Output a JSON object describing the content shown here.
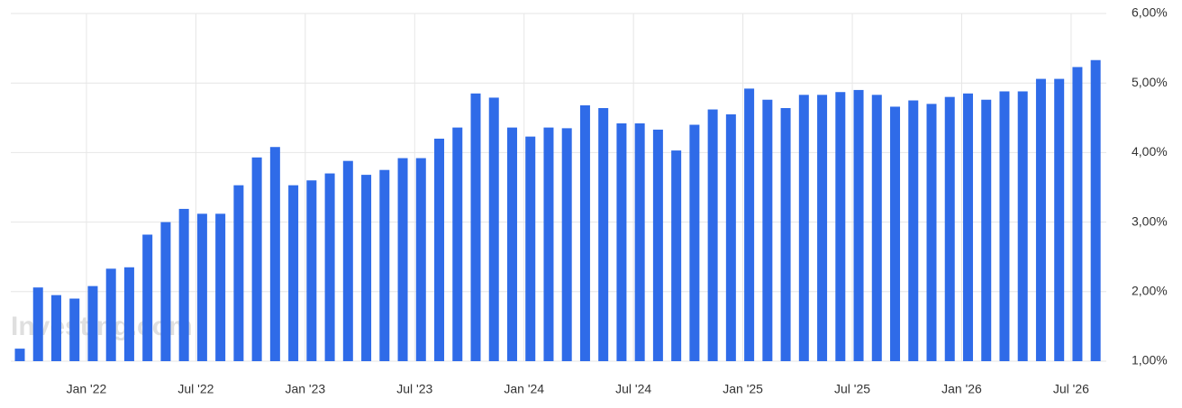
{
  "chart_data": {
    "type": "bar",
    "watermark": "Investing.com",
    "color": "#2f6be8",
    "categories": [
      null,
      null,
      null,
      null,
      "Jan '22",
      null,
      null,
      null,
      null,
      null,
      "Jul '22",
      null,
      null,
      null,
      null,
      null,
      "Jan '23",
      null,
      null,
      null,
      null,
      null,
      "Jul '23",
      null,
      null,
      null,
      null,
      null,
      "Jan '24",
      null,
      null,
      null,
      null,
      null,
      "Jul '24",
      null,
      null,
      null,
      null,
      null,
      "Jan '25",
      null,
      null,
      null,
      null,
      null,
      "Jul '25",
      null,
      null,
      null,
      null,
      null,
      "Jan '26",
      null,
      null,
      null,
      null,
      null,
      "Jul '26",
      null
    ],
    "values": [
      1.18,
      2.06,
      1.95,
      1.9,
      2.08,
      2.33,
      2.35,
      2.82,
      3.0,
      3.19,
      3.12,
      3.12,
      3.53,
      3.93,
      4.08,
      3.53,
      3.6,
      3.7,
      3.88,
      3.68,
      3.75,
      3.92,
      3.92,
      4.2,
      4.36,
      4.85,
      4.79,
      4.36,
      4.23,
      4.36,
      4.35,
      4.68,
      4.64,
      4.42,
      4.42,
      4.33,
      4.03,
      4.4,
      4.62,
      4.55,
      4.92,
      4.76,
      4.64,
      4.83,
      4.83,
      4.87,
      4.9,
      4.83,
      4.66,
      4.75,
      4.7,
      4.8,
      4.85,
      4.76,
      4.88,
      4.88,
      5.06,
      5.06,
      5.23,
      5.33
    ],
    "ylim": [
      1,
      6
    ],
    "yticks": [
      {
        "value": 1,
        "label": "1,00%"
      },
      {
        "value": 2,
        "label": "2,00%"
      },
      {
        "value": 3,
        "label": "3,00%"
      },
      {
        "value": 4,
        "label": "4,00%"
      },
      {
        "value": 5,
        "label": "5,00%"
      },
      {
        "value": 6,
        "label": "6,00%"
      }
    ],
    "grid": true
  }
}
